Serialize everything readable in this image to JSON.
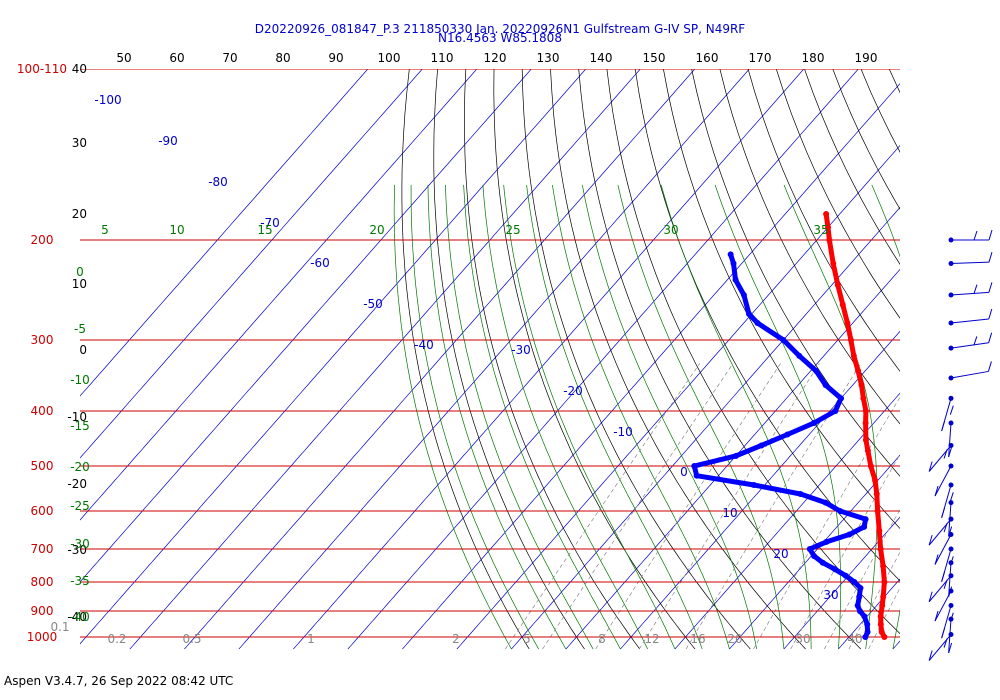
{
  "title_line1": "D20220926_081847_P.3 211850330 Jan. 20220926N1 Gulfstream G-IV SP, N49RF",
  "title_line2": "N16.4563 W85.1808",
  "footer": "Aspen V3.4.7, 26 Sep 2022  08:42 UTC",
  "colors": {
    "isobar": "#cc0000",
    "isotherm": "#0000cc",
    "dry_adiabat": "#000000",
    "moist_adiabat": "#007700",
    "mixing_ratio": "#888888",
    "temperature": "#ff0000",
    "dewpoint": "#0000ff",
    "wind": "#0000cc"
  },
  "chart_data": {
    "type": "skew-t",
    "pressure_labels": [
      "100-110",
      "200",
      "300",
      "400",
      "500",
      "600",
      "700",
      "800",
      "900",
      "1000"
    ],
    "pressure_levels": [
      100,
      200,
      300,
      400,
      500,
      600,
      700,
      800,
      900,
      1000
    ],
    "top_labels": [
      "50",
      "60",
      "70",
      "80",
      "90",
      "100",
      "110",
      "120",
      "130",
      "140",
      "150",
      "160",
      "170",
      "180",
      "190"
    ],
    "left_dry_labels": [
      "40",
      "30",
      "20",
      "10",
      "0",
      "-10",
      "-20",
      "-30",
      "-40"
    ],
    "isotherm_labels": [
      "-100",
      "-90",
      "-80",
      "-70",
      "-60",
      "-50",
      "-40",
      "-30",
      "-20",
      "-10",
      "0",
      "10",
      "20",
      "30"
    ],
    "moist_top_labels": [
      "5",
      "10",
      "15",
      "20",
      "25",
      "30",
      "35"
    ],
    "moist_left_labels": [
      "0",
      "-5",
      "-10",
      "-15",
      "-20",
      "-25",
      "-30",
      "-35",
      "-40"
    ],
    "mixing_ratio_labels": [
      "0.1",
      "0.2",
      "0.5",
      "1",
      "2",
      "5",
      "8",
      "12",
      "16",
      "20",
      "30",
      "40"
    ],
    "temperature_profile": [
      {
        "p": 1000,
        "t": 26.5
      },
      {
        "p": 980,
        "t": 25.2
      },
      {
        "p": 950,
        "t": 23.8
      },
      {
        "p": 920,
        "t": 22.5
      },
      {
        "p": 880,
        "t": 21.0
      },
      {
        "p": 850,
        "t": 19.8
      },
      {
        "p": 800,
        "t": 17.6
      },
      {
        "p": 750,
        "t": 14.8
      },
      {
        "p": 700,
        "t": 11.6
      },
      {
        "p": 650,
        "t": 8.4
      },
      {
        "p": 600,
        "t": 4.9
      },
      {
        "p": 560,
        "t": 2.0
      },
      {
        "p": 530,
        "t": -0.5
      },
      {
        "p": 500,
        "t": -3.6
      },
      {
        "p": 470,
        "t": -6.6
      },
      {
        "p": 450,
        "t": -8.7
      },
      {
        "p": 420,
        "t": -11.5
      },
      {
        "p": 400,
        "t": -13.4
      },
      {
        "p": 380,
        "t": -15.9
      },
      {
        "p": 360,
        "t": -18.4
      },
      {
        "p": 340,
        "t": -21.3
      },
      {
        "p": 320,
        "t": -24.5
      },
      {
        "p": 300,
        "t": -27.6
      },
      {
        "p": 280,
        "t": -31.0
      },
      {
        "p": 260,
        "t": -34.8
      },
      {
        "p": 240,
        "t": -38.9
      },
      {
        "p": 220,
        "t": -43.2
      },
      {
        "p": 200,
        "t": -47.7
      },
      {
        "p": 190,
        "t": -50.0
      },
      {
        "p": 180,
        "t": -52.5
      }
    ],
    "dewpoint_profile": [
      {
        "p": 1000,
        "td": 23.0
      },
      {
        "p": 980,
        "td": 22.6
      },
      {
        "p": 950,
        "td": 21.3
      },
      {
        "p": 920,
        "td": 19.5
      },
      {
        "p": 900,
        "td": 17.8
      },
      {
        "p": 880,
        "td": 16.5
      },
      {
        "p": 850,
        "td": 15.4
      },
      {
        "p": 820,
        "td": 14.2
      },
      {
        "p": 800,
        "td": 12.1
      },
      {
        "p": 780,
        "td": 9.5
      },
      {
        "p": 760,
        "td": 6.5
      },
      {
        "p": 740,
        "td": 3.2
      },
      {
        "p": 720,
        "td": 0.5
      },
      {
        "p": 700,
        "td": -1.4
      },
      {
        "p": 680,
        "td": 0.5
      },
      {
        "p": 660,
        "td": 3.5
      },
      {
        "p": 640,
        "td": 5.0
      },
      {
        "p": 620,
        "td": 4.0
      },
      {
        "p": 600,
        "td": -2.0
      },
      {
        "p": 580,
        "td": -6.0
      },
      {
        "p": 560,
        "td": -12.0
      },
      {
        "p": 540,
        "td": -22.0
      },
      {
        "p": 520,
        "td": -34.0
      },
      {
        "p": 500,
        "td": -36.0
      },
      {
        "p": 480,
        "td": -30.0
      },
      {
        "p": 460,
        "td": -27.0
      },
      {
        "p": 440,
        "td": -24.0
      },
      {
        "p": 420,
        "td": -21.0
      },
      {
        "p": 400,
        "td": -19.0
      },
      {
        "p": 380,
        "td": -20.0
      },
      {
        "p": 360,
        "td": -25.0
      },
      {
        "p": 340,
        "td": -29.0
      },
      {
        "p": 320,
        "td": -34.5
      },
      {
        "p": 300,
        "td": -40.0
      },
      {
        "p": 280,
        "td": -47.5
      },
      {
        "p": 270,
        "td": -50.5
      },
      {
        "p": 250,
        "td": -54.5
      },
      {
        "p": 235,
        "td": -58.5
      },
      {
        "p": 220,
        "td": -61.5
      },
      {
        "p": 212,
        "td": -63.5
      }
    ],
    "wind_levels": [
      200,
      220,
      250,
      280,
      310,
      350,
      380,
      420,
      460,
      500,
      540,
      580,
      620,
      660,
      700,
      740,
      780,
      830,
      880,
      930,
      990
    ]
  }
}
